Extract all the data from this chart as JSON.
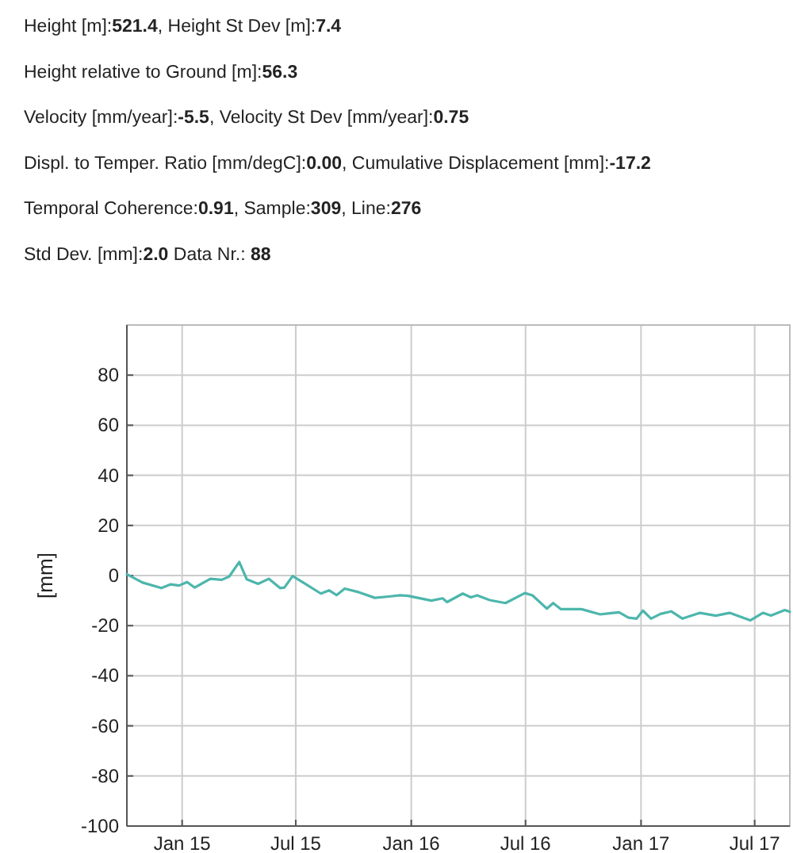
{
  "chart_data": {
    "type": "line",
    "annotations": [
      "Height [m]:521.4, Height St Dev [m]:7.4",
      "Height relative to Ground [m]:56.3",
      "Velocity [mm/year]:-5.5, Velocity St Dev [mm/year]:0.75",
      "Displ. to Temper. Ratio [mm/degC]:0.00, Cumulative Displacement [mm]:-17.2",
      "Temporal Coherence:0.91, Sample:309, Line:276",
      "Std Dev. [mm]:2.0 Data Nr.: 88"
    ],
    "ylabel": "[mm]",
    "x": [
      "2014-10-05",
      "2014-10-30",
      "2014-11-29",
      "2014-12-14",
      "2014-12-27",
      "2015-01-09",
      "2015-01-21",
      "2015-02-15",
      "2015-03-05",
      "2015-03-17",
      "2015-04-02",
      "2015-04-14",
      "2015-05-02",
      "2015-05-19",
      "2015-06-06",
      "2015-06-13",
      "2015-06-26",
      "2015-07-16",
      "2015-08-10",
      "2015-08-23",
      "2015-09-04",
      "2015-09-17",
      "2015-10-10",
      "2015-11-04",
      "2015-11-29",
      "2015-12-14",
      "2015-12-27",
      "2016-02-02",
      "2016-02-20",
      "2016-02-27",
      "2016-03-23",
      "2016-04-05",
      "2016-04-15",
      "2016-05-05",
      "2016-05-30",
      "2016-06-30",
      "2016-07-12",
      "2016-08-04",
      "2016-08-14",
      "2016-08-26",
      "2016-09-28",
      "2016-10-28",
      "2016-11-27",
      "2016-12-12",
      "2016-12-25",
      "2017-01-04",
      "2017-01-17",
      "2017-02-01",
      "2017-02-18",
      "2017-03-08",
      "2017-04-05",
      "2017-04-30",
      "2017-05-22",
      "2017-06-24",
      "2017-07-14",
      "2017-07-27",
      "2017-08-18",
      "2017-08-26"
    ],
    "series": [
      {
        "color": "#4db6ac",
        "values": [
          0.5,
          -2.8,
          -5,
          -3.5,
          -4,
          -2.6,
          -4.8,
          -1.3,
          -1.7,
          -0.4,
          5.4,
          -1.5,
          -3.3,
          -1.3,
          -5,
          -4.8,
          -0.2,
          -3.3,
          -7.2,
          -5.9,
          -7.8,
          -5.2,
          -6.7,
          -8.9,
          -8.3,
          -7.9,
          -8.1,
          -10,
          -9.1,
          -10.6,
          -7.2,
          -8.7,
          -7.9,
          -9.8,
          -11,
          -7,
          -7.9,
          -13.2,
          -11,
          -13.4,
          -13.4,
          -15.5,
          -14.7,
          -16.8,
          -17.2,
          -14,
          -17.2,
          -15.3,
          -14.3,
          -17.2,
          -14.9,
          -16,
          -14.9,
          -17.9,
          -14.9,
          -16,
          -13.8,
          -14.5
        ]
      }
    ],
    "xlim": [
      "2014-10-05",
      "2017-08-26"
    ],
    "xticks": [
      {
        "value": "2015-01-01",
        "label": "Jan 15"
      },
      {
        "value": "2015-07-01",
        "label": "Jul 15"
      },
      {
        "value": "2016-01-01",
        "label": "Jan 16"
      },
      {
        "value": "2016-07-01",
        "label": "Jul 16"
      },
      {
        "value": "2017-01-01",
        "label": "Jan 17"
      },
      {
        "value": "2017-07-01",
        "label": "Jul 17"
      }
    ],
    "ylim": [
      -100,
      100
    ],
    "yticks": [
      -100,
      -80,
      -60,
      -40,
      -20,
      0,
      20,
      40,
      60,
      80
    ],
    "grid": true,
    "line_style": "solid",
    "marker": "none"
  }
}
